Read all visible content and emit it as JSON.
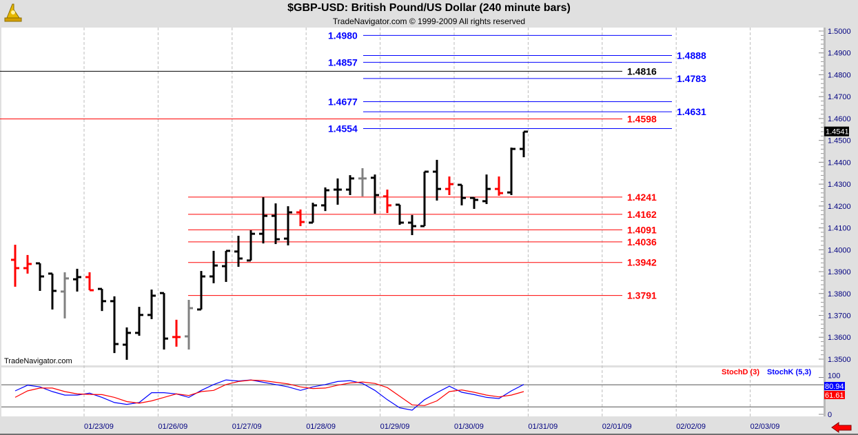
{
  "header": {
    "title": "$GBP-USD:  British Pound/US Dollar  (240 minute bars)",
    "copyright": "TradeNavigator.com © 1999-2009 All rights reserved",
    "watermark": "TradeNavigator.com",
    "logo_icon": "sextant-icon",
    "nav_icon": "red-left-arrow-icon"
  },
  "colors": {
    "up": "#000000",
    "down": "#ff0000",
    "neutral": "#808080",
    "projection": "#0000ff",
    "retracement": "#ff0000",
    "axis_text": "#000080",
    "stoch_d": "#ff0000",
    "stoch_k": "#0000ff"
  },
  "chart_data": [
    {
      "type": "ohlc",
      "title": "$GBP-USD:  British Pound/US Dollar  (240 minute bars)",
      "ylim": [
        1.345,
        1.5025
      ],
      "yticks": [
        "1.5000",
        "1.4900",
        "1.4800",
        "1.4700",
        "1.4600",
        "1.4500",
        "1.4400",
        "1.4300",
        "1.4200",
        "1.4100",
        "1.4000",
        "1.3900",
        "1.3800",
        "1.3700",
        "1.3600",
        "1.3500"
      ],
      "xticks": [
        "01/23/09",
        "01/26/09",
        "01/27/09",
        "01/28/09",
        "01/29/09",
        "01/30/09",
        "01/31/09",
        "02/01/09",
        "02/02/09",
        "02/03/09"
      ],
      "last_price": "1.4541",
      "bars": [
        {
          "o": 1.3954,
          "h": 1.4023,
          "l": 1.3831,
          "c": 1.3916,
          "color": "down"
        },
        {
          "o": 1.3916,
          "h": 1.3976,
          "l": 1.3891,
          "c": 1.3935,
          "color": "down"
        },
        {
          "o": 1.3938,
          "h": 1.3938,
          "l": 1.3812,
          "c": 1.3878,
          "color": "up"
        },
        {
          "o": 1.3891,
          "h": 1.3891,
          "l": 1.3727,
          "c": 1.3812,
          "color": "up"
        },
        {
          "o": 1.3809,
          "h": 1.3897,
          "l": 1.3686,
          "c": 1.3869,
          "color": "neutral"
        },
        {
          "o": 1.3865,
          "h": 1.3913,
          "l": 1.3809,
          "c": 1.3875,
          "color": "up"
        },
        {
          "o": 1.3875,
          "h": 1.3897,
          "l": 1.3815,
          "c": 1.3815,
          "color": "down"
        },
        {
          "o": 1.3821,
          "h": 1.3821,
          "l": 1.372,
          "c": 1.3765,
          "color": "up"
        },
        {
          "o": 1.3765,
          "h": 1.3787,
          "l": 1.3528,
          "c": 1.3569,
          "color": "up"
        },
        {
          "o": 1.3566,
          "h": 1.3645,
          "l": 1.3497,
          "c": 1.362,
          "color": "up"
        },
        {
          "o": 1.362,
          "h": 1.3739,
          "l": 1.3607,
          "c": 1.3702,
          "color": "up"
        },
        {
          "o": 1.3702,
          "h": 1.3818,
          "l": 1.3683,
          "c": 1.379,
          "color": "up"
        },
        {
          "o": 1.3802,
          "h": 1.3802,
          "l": 1.3544,
          "c": 1.3594,
          "color": "up"
        },
        {
          "o": 1.3601,
          "h": 1.368,
          "l": 1.3557,
          "c": 1.3601,
          "color": "down"
        },
        {
          "o": 1.3604,
          "h": 1.3771,
          "l": 1.3544,
          "c": 1.3733,
          "color": "neutral"
        },
        {
          "o": 1.3727,
          "h": 1.3903,
          "l": 1.3727,
          "c": 1.3878,
          "color": "up"
        },
        {
          "o": 1.3878,
          "h": 1.3995,
          "l": 1.3847,
          "c": 1.3928,
          "color": "up"
        },
        {
          "o": 1.3925,
          "h": 1.3995,
          "l": 1.3853,
          "c": 1.3995,
          "color": "up"
        },
        {
          "o": 1.3992,
          "h": 1.4064,
          "l": 1.3922,
          "c": 1.396,
          "color": "up"
        },
        {
          "o": 1.3951,
          "h": 1.4089,
          "l": 1.3951,
          "c": 1.4073,
          "color": "up"
        },
        {
          "o": 1.4073,
          "h": 1.424,
          "l": 1.4029,
          "c": 1.4155,
          "color": "up"
        },
        {
          "o": 1.4155,
          "h": 1.4212,
          "l": 1.4026,
          "c": 1.4048,
          "color": "up"
        },
        {
          "o": 1.4051,
          "h": 1.4199,
          "l": 1.402,
          "c": 1.4171,
          "color": "up"
        },
        {
          "o": 1.4171,
          "h": 1.4184,
          "l": 1.4108,
          "c": 1.4127,
          "color": "down"
        },
        {
          "o": 1.4124,
          "h": 1.4215,
          "l": 1.4124,
          "c": 1.4203,
          "color": "up"
        },
        {
          "o": 1.4203,
          "h": 1.4285,
          "l": 1.4177,
          "c": 1.4272,
          "color": "up"
        },
        {
          "o": 1.4275,
          "h": 1.4326,
          "l": 1.4206,
          "c": 1.4275,
          "color": "up"
        },
        {
          "o": 1.4275,
          "h": 1.4341,
          "l": 1.425,
          "c": 1.4326,
          "color": "up"
        },
        {
          "o": 1.4326,
          "h": 1.4373,
          "l": 1.4244,
          "c": 1.4326,
          "color": "neutral"
        },
        {
          "o": 1.4329,
          "h": 1.4344,
          "l": 1.4165,
          "c": 1.425,
          "color": "up"
        },
        {
          "o": 1.4244,
          "h": 1.4275,
          "l": 1.4168,
          "c": 1.4203,
          "color": "down"
        },
        {
          "o": 1.4206,
          "h": 1.4206,
          "l": 1.4114,
          "c": 1.4124,
          "color": "up"
        },
        {
          "o": 1.4124,
          "h": 1.4159,
          "l": 1.4067,
          "c": 1.4108,
          "color": "up"
        },
        {
          "o": 1.4108,
          "h": 1.4357,
          "l": 1.4108,
          "c": 1.4357,
          "color": "up"
        },
        {
          "o": 1.4357,
          "h": 1.4411,
          "l": 1.4225,
          "c": 1.4278,
          "color": "up"
        },
        {
          "o": 1.4278,
          "h": 1.4335,
          "l": 1.425,
          "c": 1.43,
          "color": "down"
        },
        {
          "o": 1.4297,
          "h": 1.4297,
          "l": 1.4203,
          "c": 1.4237,
          "color": "up"
        },
        {
          "o": 1.4237,
          "h": 1.424,
          "l": 1.4187,
          "c": 1.4228,
          "color": "up"
        },
        {
          "o": 1.4222,
          "h": 1.4344,
          "l": 1.4209,
          "c": 1.4278,
          "color": "up"
        },
        {
          "o": 1.4278,
          "h": 1.4335,
          "l": 1.4247,
          "c": 1.4259,
          "color": "down"
        },
        {
          "o": 1.4262,
          "h": 1.4467,
          "l": 1.425,
          "c": 1.4461,
          "color": "up"
        },
        {
          "o": 1.4461,
          "h": 1.454,
          "l": 1.4423,
          "c": 1.454,
          "color": "up"
        }
      ],
      "levels": [
        {
          "value": "1.4980",
          "kind": "projection",
          "label_side": "left"
        },
        {
          "value": "1.4888",
          "kind": "projection",
          "label_side": "right"
        },
        {
          "value": "1.4857",
          "kind": "projection",
          "label_side": "left"
        },
        {
          "value": "1.4783",
          "kind": "projection",
          "label_side": "right"
        },
        {
          "value": "1.4677",
          "kind": "projection",
          "label_side": "left"
        },
        {
          "value": "1.4631",
          "kind": "projection",
          "label_side": "right"
        },
        {
          "value": "1.4554",
          "kind": "projection",
          "label_side": "left"
        },
        {
          "value": "1.4816",
          "kind": "resistance-black"
        },
        {
          "value": "1.4598",
          "kind": "resistance-red"
        },
        {
          "value": "1.4241",
          "kind": "retracement"
        },
        {
          "value": "1.4162",
          "kind": "retracement"
        },
        {
          "value": "1.4091",
          "kind": "retracement"
        },
        {
          "value": "1.4036",
          "kind": "retracement"
        },
        {
          "value": "1.3942",
          "kind": "retracement"
        },
        {
          "value": "1.3791",
          "kind": "retracement"
        }
      ]
    },
    {
      "type": "line",
      "title": "Stochastic",
      "ylim": [
        0,
        100
      ],
      "yticks": [
        "100",
        "0"
      ],
      "reference_lines": [
        80,
        20
      ],
      "legend": [
        "StochD (3)",
        "StochK (5,3)"
      ],
      "legend_position": "top-right",
      "last_values": {
        "StochK": "80.94",
        "StochD": "61.61"
      },
      "series": [
        {
          "name": "StochK (5,3)",
          "color": "#0000ff",
          "values": [
            63.6,
            78.8,
            74.4,
            61.7,
            52.2,
            52.2,
            57.3,
            45.9,
            32,
            27,
            32,
            58.6,
            58.6,
            55.4,
            45.9,
            64.9,
            80.7,
            93.3,
            90.2,
            93.3,
            87,
            80.7,
            74.4,
            64.9,
            74.4,
            80.7,
            88.9,
            91.4,
            83.8,
            64.9,
            39.6,
            17.5,
            11.2,
            39.6,
            58.6,
            76.2,
            59.8,
            53.5,
            45.9,
            42.8,
            63.6,
            80.94
          ]
        },
        {
          "name": "StochD (3)",
          "color": "#ff0000",
          "values": [
            45.9,
            63.6,
            71.2,
            71.2,
            61.7,
            55.4,
            54.1,
            53.5,
            45.9,
            34.5,
            30.1,
            36.4,
            45.9,
            55.4,
            51,
            61.7,
            64.9,
            80.7,
            88.9,
            92.7,
            91.4,
            87,
            82.6,
            74.4,
            69.9,
            71.2,
            78.8,
            85.1,
            87.6,
            83.8,
            72.5,
            49.1,
            25.7,
            23.8,
            36.4,
            61.7,
            66.1,
            59.8,
            52.2,
            47.2,
            52.2,
            61.61
          ]
        }
      ]
    }
  ]
}
